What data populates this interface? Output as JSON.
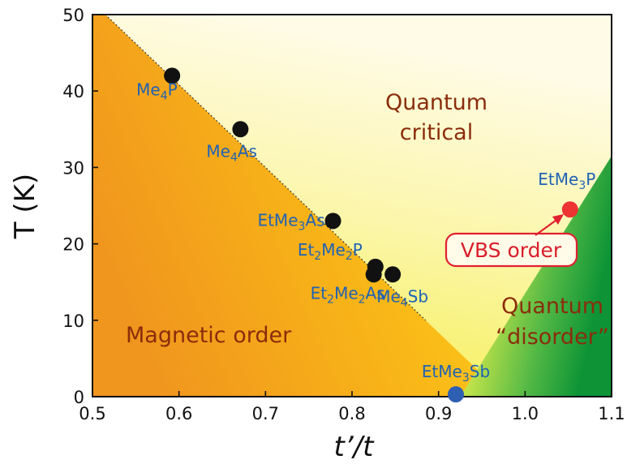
{
  "chart_data": {
    "type": "scatter",
    "xlabel": "t’/t",
    "ylabel": "T (K)",
    "xlim": [
      0.5,
      1.1
    ],
    "ylim": [
      0,
      50
    ],
    "x_ticks": [
      "0.5",
      "0.6",
      "0.7",
      "0.8",
      "0.9",
      "1.0",
      "1.1"
    ],
    "y_ticks": [
      "0",
      "10",
      "20",
      "30",
      "40",
      "50"
    ],
    "grid": false,
    "points": [
      {
        "x": 0.592,
        "y": 42,
        "label": "Me4P",
        "label_parts": [
          [
            "Me",
            ""
          ],
          [
            "4",
            "sub"
          ],
          [
            "P",
            ""
          ]
        ],
        "color": "#111111"
      },
      {
        "x": 0.671,
        "y": 35,
        "label": "Me4As",
        "label_parts": [
          [
            "Me",
            ""
          ],
          [
            "4",
            "sub"
          ],
          [
            "As",
            ""
          ]
        ],
        "color": "#111111"
      },
      {
        "x": 0.778,
        "y": 23,
        "label": "EtMe3As",
        "label_parts": [
          [
            "EtMe",
            ""
          ],
          [
            "3",
            "sub"
          ],
          [
            "As",
            ""
          ]
        ],
        "color": "#111111"
      },
      {
        "x": 0.827,
        "y": 17,
        "label": "Et2Me2P",
        "label_parts": [
          [
            "Et",
            ""
          ],
          [
            "2",
            "sub"
          ],
          [
            "Me",
            ""
          ],
          [
            "2",
            "sub"
          ],
          [
            "P",
            ""
          ]
        ],
        "color": "#111111"
      },
      {
        "x": 0.825,
        "y": 16,
        "label": "Et2Me2As",
        "label_parts": [
          [
            "Et",
            ""
          ],
          [
            "2",
            "sub"
          ],
          [
            "Me",
            ""
          ],
          [
            "2",
            "sub"
          ],
          [
            "As",
            ""
          ]
        ],
        "color": "#111111"
      },
      {
        "x": 0.847,
        "y": 16,
        "label": "Me4Sb",
        "label_parts": [
          [
            "Me",
            ""
          ],
          [
            "4",
            "sub"
          ],
          [
            "Sb",
            ""
          ]
        ],
        "color": "#111111"
      },
      {
        "x": 0.92,
        "y": 0.3,
        "label": "EtMe3Sb",
        "label_parts": [
          [
            "EtMe",
            ""
          ],
          [
            "3",
            "sub"
          ],
          [
            "Sb",
            ""
          ]
        ],
        "color": "#2f5fb3"
      },
      {
        "x": 1.052,
        "y": 24.5,
        "label": "EtMe3P",
        "label_parts": [
          [
            "EtMe",
            ""
          ],
          [
            "3",
            "sub"
          ],
          [
            "P",
            ""
          ]
        ],
        "color": "#ee3333"
      }
    ],
    "annotations": {
      "magnetic": "Magnetic order",
      "quantum_critical_1": "Quantum",
      "quantum_critical_2": "critical",
      "quantum_disorder_1": "Quantum",
      "quantum_disorder_2": "“disorder”",
      "vbs": "VBS order"
    },
    "colors": {
      "magnetic_dark": "#f0951e",
      "magnetic_light": "#ffd21a",
      "critical_bg": "#fffbe0",
      "critical_yellow": "#f7ec3a",
      "disorder_green": "#13993a",
      "label_blue": "#1f62b4",
      "region_brown": "#8a2d0c",
      "vbs_red": "#d81e2a"
    }
  }
}
